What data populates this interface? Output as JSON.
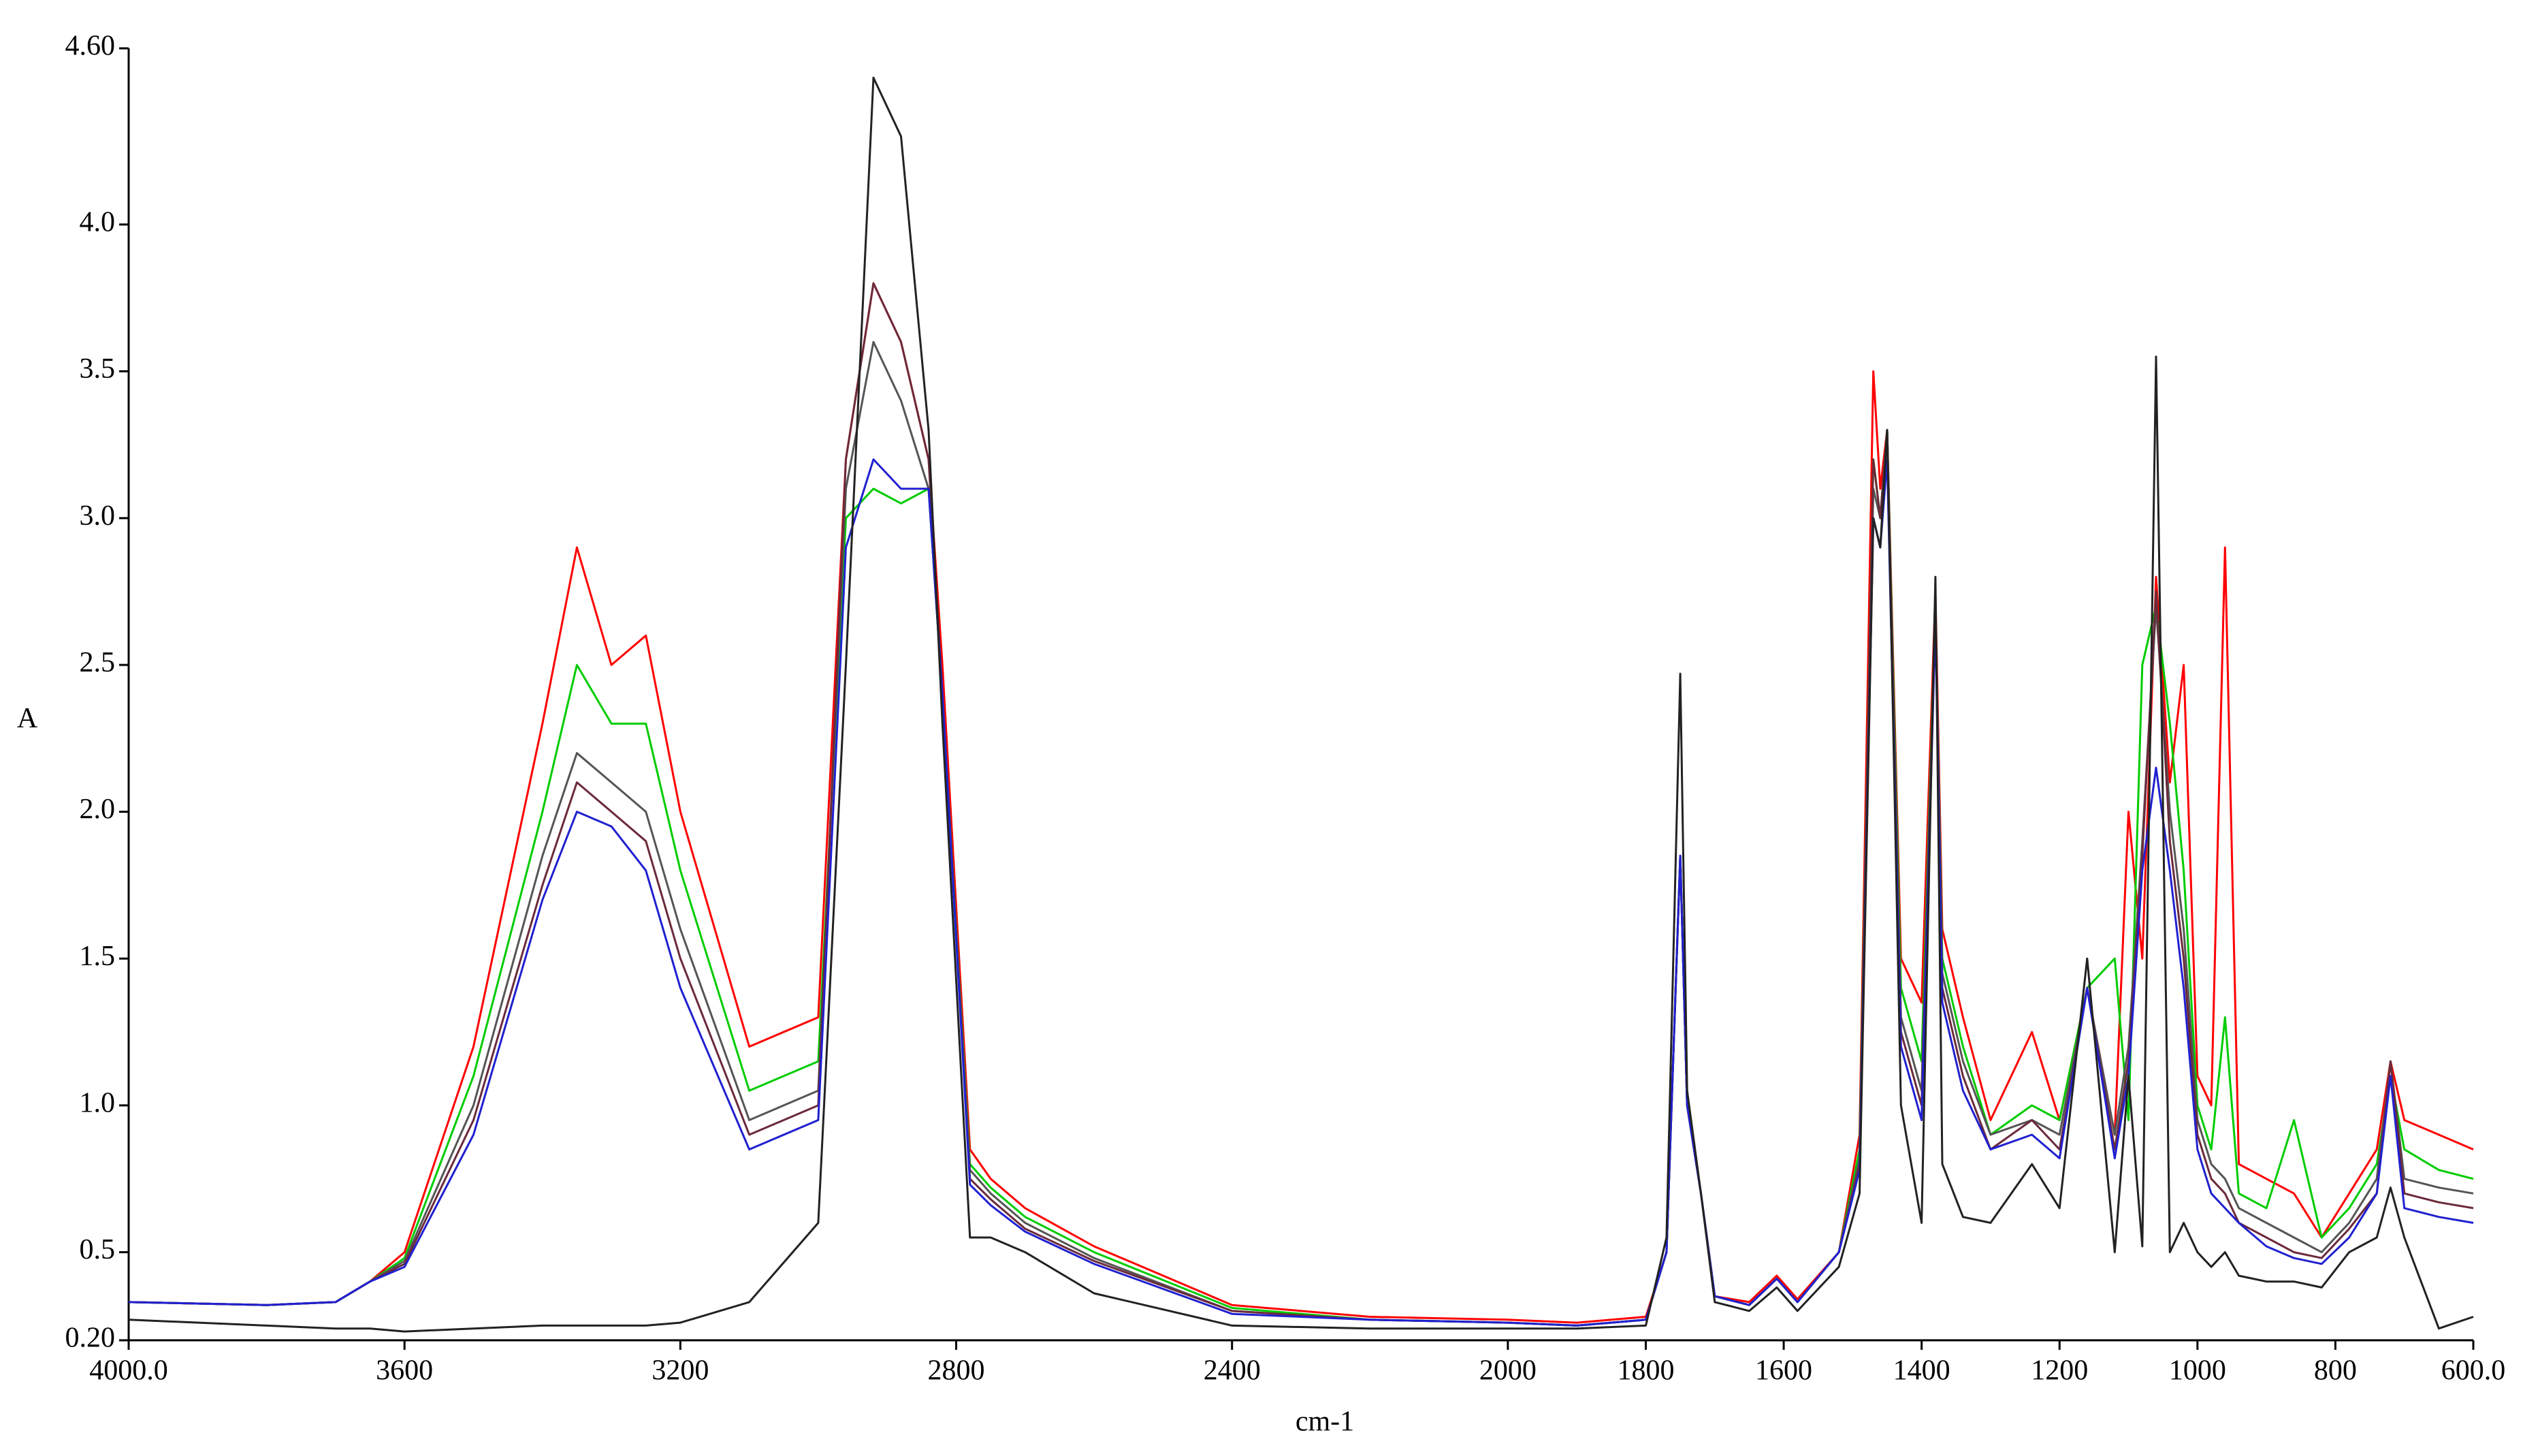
{
  "chart_data": {
    "type": "line",
    "x_label": "cm-1",
    "y_label": "A",
    "xlim": [
      4000,
      600
    ],
    "ylim": [
      0.2,
      4.6
    ],
    "xticks": [
      {
        "value": 4000,
        "label": "4000.0"
      },
      3600,
      3200,
      2800,
      2400,
      2000,
      1800,
      1600,
      1400,
      1200,
      1000,
      800,
      {
        "value": 600,
        "label": "600.0"
      }
    ],
    "yticks": [
      {
        "value": 0.2,
        "label": "0.20"
      },
      0.5,
      {
        "value": 1,
        "label": "1.0"
      },
      1.5,
      {
        "value": 2,
        "label": "2.0"
      },
      2.5,
      {
        "value": 3,
        "label": "3.0"
      },
      3.5,
      {
        "value": 4,
        "label": "4.0"
      },
      {
        "value": 4.6,
        "label": "4.60"
      }
    ],
    "x": [
      4000,
      3800,
      3700,
      3650,
      3600,
      3500,
      3400,
      3350,
      3300,
      3250,
      3200,
      3100,
      3000,
      2960,
      2920,
      2880,
      2840,
      2820,
      2780,
      2750,
      2700,
      2600,
      2400,
      2200,
      2000,
      1900,
      1800,
      1770,
      1750,
      1740,
      1720,
      1700,
      1650,
      1610,
      1580,
      1520,
      1490,
      1470,
      1460,
      1450,
      1430,
      1400,
      1380,
      1370,
      1340,
      1300,
      1240,
      1200,
      1160,
      1120,
      1100,
      1080,
      1060,
      1040,
      1020,
      1000,
      980,
      960,
      940,
      900,
      860,
      820,
      780,
      740,
      720,
      700,
      650,
      600
    ],
    "series": [
      {
        "color": "#ff0000",
        "values": [
          0.33,
          0.32,
          0.33,
          0.4,
          0.5,
          1.2,
          2.3,
          2.9,
          2.5,
          2.6,
          2.0,
          1.2,
          1.3,
          3.2,
          3.8,
          3.6,
          3.2,
          2.5,
          0.85,
          0.75,
          0.65,
          0.52,
          0.32,
          0.28,
          0.27,
          0.26,
          0.28,
          0.5,
          1.85,
          1.0,
          0.7,
          0.35,
          0.33,
          0.42,
          0.34,
          0.5,
          0.9,
          3.5,
          3.1,
          3.3,
          1.5,
          1.35,
          2.75,
          1.6,
          1.3,
          0.95,
          1.25,
          0.95,
          1.4,
          0.9,
          2.0,
          1.5,
          2.8,
          2.1,
          2.5,
          1.1,
          1.0,
          2.9,
          0.8,
          0.75,
          0.7,
          0.55,
          0.7,
          0.85,
          1.15,
          0.95,
          0.9,
          0.85
        ]
      },
      {
        "color": "#00cc00",
        "values": [
          0.33,
          0.32,
          0.33,
          0.4,
          0.48,
          1.1,
          2.0,
          2.5,
          2.3,
          2.3,
          1.8,
          1.05,
          1.15,
          3.0,
          3.1,
          3.05,
          3.1,
          2.4,
          0.8,
          0.72,
          0.62,
          0.5,
          0.31,
          0.27,
          0.26,
          0.25,
          0.27,
          0.5,
          1.85,
          1.0,
          0.7,
          0.35,
          0.32,
          0.41,
          0.33,
          0.5,
          0.85,
          3.2,
          3.0,
          3.3,
          1.4,
          1.15,
          2.7,
          1.5,
          1.2,
          0.9,
          1.0,
          0.95,
          1.4,
          1.5,
          0.95,
          2.5,
          2.7,
          2.3,
          1.8,
          1.0,
          0.85,
          1.3,
          0.7,
          0.65,
          0.95,
          0.55,
          0.65,
          0.8,
          1.1,
          0.85,
          0.78,
          0.75
        ]
      },
      {
        "color": "#555555",
        "values": [
          0.33,
          0.32,
          0.33,
          0.4,
          0.47,
          1.0,
          1.85,
          2.2,
          2.1,
          2.0,
          1.6,
          0.95,
          1.05,
          3.1,
          3.6,
          3.4,
          3.1,
          2.4,
          0.78,
          0.7,
          0.6,
          0.48,
          0.3,
          0.27,
          0.26,
          0.25,
          0.27,
          0.5,
          1.85,
          1.0,
          0.7,
          0.35,
          0.32,
          0.41,
          0.33,
          0.5,
          0.82,
          3.1,
          3.0,
          3.3,
          1.3,
          1.05,
          2.7,
          1.45,
          1.15,
          0.9,
          0.95,
          0.9,
          1.4,
          0.9,
          1.2,
          1.9,
          2.7,
          2.0,
          1.6,
          0.95,
          0.8,
          0.75,
          0.65,
          0.6,
          0.55,
          0.5,
          0.6,
          0.75,
          1.15,
          0.75,
          0.72,
          0.7
        ]
      },
      {
        "color": "#6b2a3a",
        "values": [
          0.33,
          0.32,
          0.33,
          0.4,
          0.46,
          0.95,
          1.75,
          2.1,
          2.0,
          1.9,
          1.5,
          0.9,
          1.0,
          3.2,
          3.8,
          3.6,
          3.2,
          2.4,
          0.75,
          0.68,
          0.58,
          0.47,
          0.3,
          0.27,
          0.26,
          0.25,
          0.27,
          0.5,
          1.85,
          1.0,
          0.7,
          0.35,
          0.32,
          0.41,
          0.33,
          0.5,
          0.8,
          3.2,
          3.0,
          3.3,
          1.25,
          1.0,
          2.7,
          1.4,
          1.1,
          0.85,
          0.95,
          0.85,
          1.4,
          0.85,
          1.15,
          1.85,
          2.75,
          1.9,
          1.5,
          0.9,
          0.75,
          0.7,
          0.6,
          0.55,
          0.5,
          0.48,
          0.58,
          0.7,
          1.15,
          0.7,
          0.67,
          0.65
        ]
      },
      {
        "color": "#2020d0",
        "values": [
          0.33,
          0.32,
          0.33,
          0.4,
          0.45,
          0.9,
          1.7,
          2.0,
          1.95,
          1.8,
          1.4,
          0.85,
          0.95,
          2.9,
          3.2,
          3.1,
          3.1,
          2.4,
          0.73,
          0.66,
          0.57,
          0.46,
          0.29,
          0.27,
          0.26,
          0.25,
          0.27,
          0.5,
          1.85,
          1.0,
          0.7,
          0.35,
          0.32,
          0.41,
          0.33,
          0.5,
          0.78,
          3.0,
          2.9,
          3.2,
          1.2,
          0.95,
          2.65,
          1.35,
          1.05,
          0.85,
          0.9,
          0.82,
          1.4,
          0.82,
          1.1,
          1.8,
          2.15,
          1.8,
          1.4,
          0.85,
          0.7,
          0.65,
          0.6,
          0.52,
          0.48,
          0.46,
          0.55,
          0.7,
          1.1,
          0.65,
          0.62,
          0.6
        ]
      },
      {
        "color": "#222222",
        "values": [
          0.27,
          0.25,
          0.24,
          0.24,
          0.23,
          0.24,
          0.25,
          0.25,
          0.25,
          0.25,
          0.26,
          0.33,
          0.6,
          2.5,
          4.5,
          4.3,
          3.3,
          2.3,
          0.55,
          0.55,
          0.5,
          0.36,
          0.25,
          0.24,
          0.24,
          0.24,
          0.25,
          0.55,
          2.47,
          1.05,
          0.7,
          0.33,
          0.3,
          0.38,
          0.3,
          0.45,
          0.7,
          3.0,
          2.9,
          3.3,
          1.0,
          0.6,
          2.8,
          0.8,
          0.62,
          0.6,
          0.8,
          0.65,
          1.5,
          0.5,
          1.1,
          0.52,
          3.55,
          0.5,
          0.6,
          0.5,
          0.45,
          0.5,
          0.42,
          0.4,
          0.4,
          0.38,
          0.5,
          0.55,
          0.72,
          0.55,
          0.24,
          0.28
        ]
      }
    ]
  }
}
